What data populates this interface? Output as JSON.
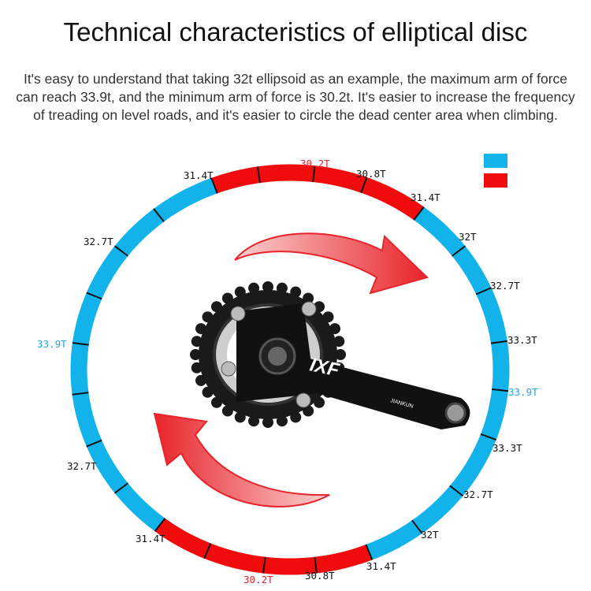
{
  "title": "Technical characteristics of elliptical disc",
  "description": "It's easy to understand that taking 32t ellipsoid as an example, the maximum arm of force can reach 33.9t, and the minimum arm of force is 30.2t. It's easier to increase the frequency of treading on level roads, and it's easier to circle the dead center area when climbing.",
  "colors": {
    "blue": "#12b3ea",
    "red": "#f00c0c",
    "tick": "#111111"
  },
  "legend": [
    {
      "color": "#12b3ea"
    },
    {
      "color": "#f00c0c"
    }
  ],
  "labels": [
    {
      "text": "31.4T",
      "style": "normal"
    },
    {
      "text": "30.2T",
      "style": "red"
    },
    {
      "text": "30.8T",
      "style": "normal"
    },
    {
      "text": "31.4T",
      "style": "normal"
    },
    {
      "text": "32T",
      "style": "normal"
    },
    {
      "text": "32.7T",
      "style": "normal"
    },
    {
      "text": "33.3T",
      "style": "normal"
    },
    {
      "text": "33.9T",
      "style": "blue"
    },
    {
      "text": "33.3T",
      "style": "normal"
    },
    {
      "text": "32.7T",
      "style": "normal"
    },
    {
      "text": "32T",
      "style": "normal"
    },
    {
      "text": "31.4T",
      "style": "normal"
    },
    {
      "text": "30.8T",
      "style": "normal"
    },
    {
      "text": "30.2T",
      "style": "red"
    },
    {
      "text": "31.4T",
      "style": "normal"
    },
    {
      "text": "32.7T",
      "style": "normal"
    },
    {
      "text": "33.9T",
      "style": "blue"
    },
    {
      "text": "32.7T",
      "style": "normal"
    }
  ],
  "crank": {
    "brand_mark": "IXF",
    "arm_text": "JIANKUN"
  }
}
